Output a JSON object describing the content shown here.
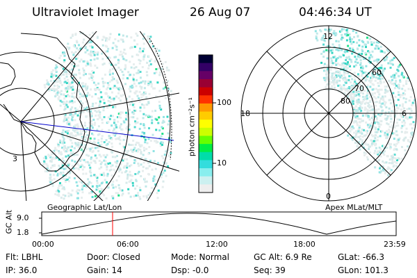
{
  "header": {
    "instrument": "Ultraviolet Imager",
    "date": "26 Aug 07",
    "time": "04:46:34 UT"
  },
  "geographic_panel": {
    "label": "Geographic Lat/Lon",
    "marker": "3"
  },
  "colorbar": {
    "unit_label": "photon cm⁻²s⁻¹",
    "ticks": [
      "100",
      "10"
    ],
    "colors": [
      "#000033",
      "#330066",
      "#660066",
      "#990033",
      "#cc0000",
      "#ff3300",
      "#ff9900",
      "#ffcc00",
      "#ffff00",
      "#ccff00",
      "#66ff00",
      "#00ee44",
      "#00ddaa",
      "#33dddd",
      "#88eeee",
      "#ccf0f0",
      "#eeeeee"
    ]
  },
  "polar_panel": {
    "label": "Apex MLat/MLT",
    "mlt_labels": {
      "top": "12",
      "left": "18",
      "right": "6",
      "bottom": "0"
    },
    "lat_labels": [
      "60",
      "70",
      "80"
    ]
  },
  "altitude_plot": {
    "ylabel": "GC Alt",
    "yticks": [
      "9.0",
      "1.8"
    ],
    "xticks": [
      "00:00",
      "06:00",
      "12:00",
      "18:00",
      "23:59"
    ]
  },
  "info": {
    "flt": "Flt: LBHL",
    "door": "Door: Closed",
    "mode": "Mode: Normal",
    "gc_alt": "GC Alt: 6.9 Re",
    "glat": "GLat: -66.3",
    "ip": "IP: 36.0",
    "gain": "Gain: 14",
    "dsp": "Dsp:    -0.0",
    "seq": "Seq: 39",
    "glon": "GLon: 101.3"
  }
}
